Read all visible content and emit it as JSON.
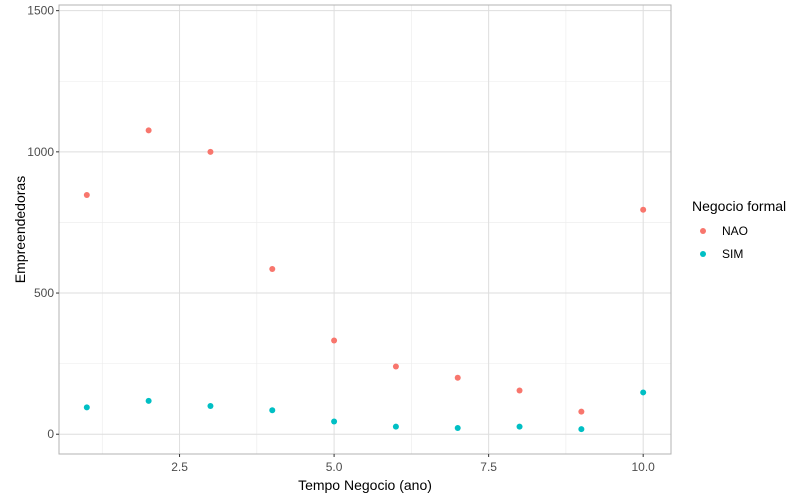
{
  "chart_data": {
    "type": "scatter",
    "xlabel": "Tempo Negocio (ano)",
    "ylabel": "Empreendedoras",
    "xlim": [
      0.55,
      10.45
    ],
    "ylim": [
      -70,
      1520
    ],
    "x_ticks": [
      {
        "value": 2.5,
        "label": "2.5"
      },
      {
        "value": 5.0,
        "label": "5.0"
      },
      {
        "value": 7.5,
        "label": "7.5"
      },
      {
        "value": 10.0,
        "label": "10.0"
      }
    ],
    "y_ticks": [
      {
        "value": 0,
        "label": "0"
      },
      {
        "value": 500,
        "label": "500"
      },
      {
        "value": 1000,
        "label": "1000"
      },
      {
        "value": 1500,
        "label": "1500"
      }
    ],
    "grid": true,
    "legend": {
      "title": "Negocio formal",
      "placement": "right"
    },
    "series": [
      {
        "name": "NAO",
        "color": "#F8766D",
        "x": [
          1,
          2,
          3,
          4,
          5,
          6,
          7,
          8,
          9,
          10
        ],
        "y": [
          847,
          1076,
          1000,
          585,
          332,
          240,
          200,
          155,
          80,
          795
        ]
      },
      {
        "name": "SIM",
        "color": "#00BFC4",
        "x": [
          1,
          2,
          3,
          4,
          5,
          6,
          7,
          8,
          9,
          10
        ],
        "y": [
          95,
          118,
          100,
          85,
          45,
          27,
          22,
          27,
          18,
          148
        ]
      }
    ]
  }
}
